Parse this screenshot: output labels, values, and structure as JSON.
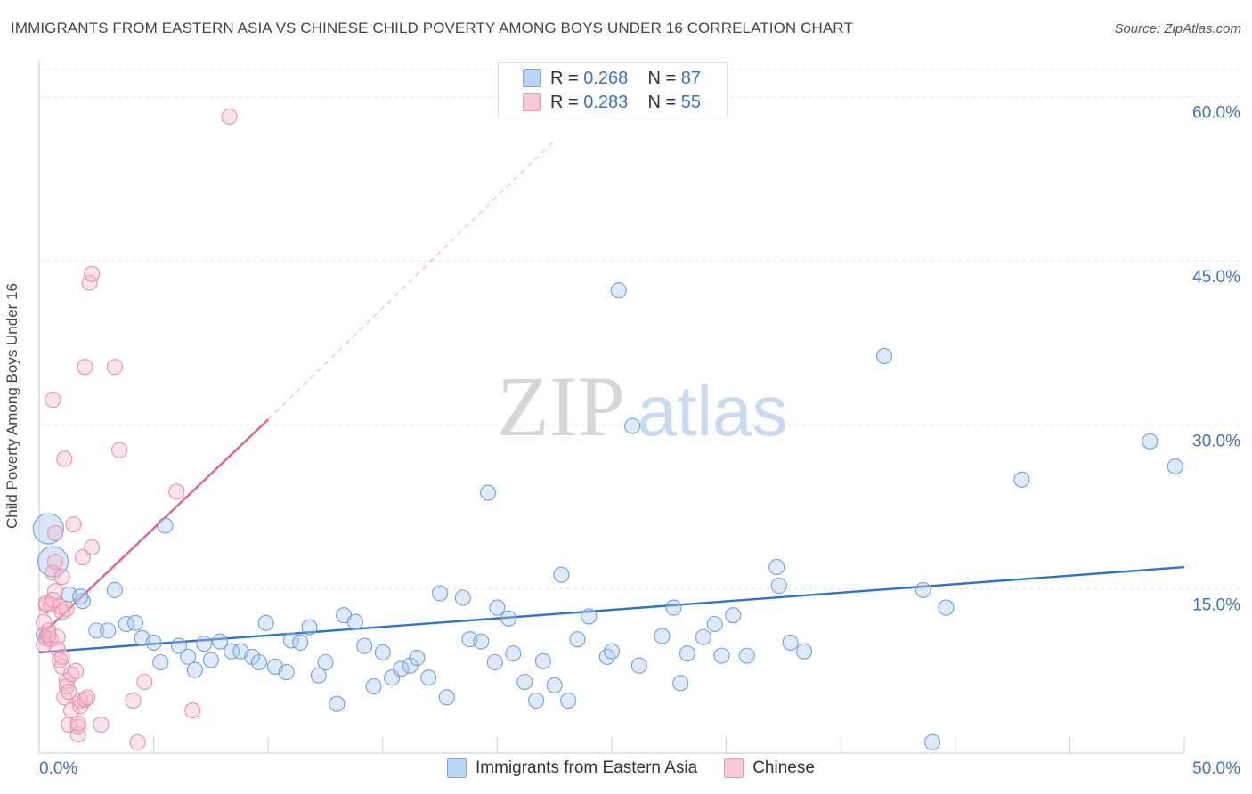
{
  "title": "IMMIGRANTS FROM EASTERN ASIA VS CHINESE CHILD POVERTY AMONG BOYS UNDER 16 CORRELATION CHART",
  "source": "Source: ZipAtlas.com",
  "watermark": {
    "zip": "ZIP",
    "atlas": "atlas"
  },
  "legend": {
    "rows": [
      {
        "r_label": "R = ",
        "r_value": "0.268",
        "n_label": "N = ",
        "n_value": "87"
      },
      {
        "r_label": "R = ",
        "r_value": "0.283",
        "n_label": "N = ",
        "n_value": "55"
      }
    ]
  },
  "chart_data": {
    "type": "scatter",
    "title": "IMMIGRANTS FROM EASTERN ASIA VS CHINESE CHILD POVERTY AMONG BOYS UNDER 16 CORRELATION CHART",
    "xlabel": "",
    "ylabel": "Child Poverty Among Boys Under 16",
    "xlim": [
      0,
      50
    ],
    "ylim": [
      0,
      62.5
    ],
    "x_tick_labels": [
      "0.0%",
      "50.0%"
    ],
    "y_ticks": [
      15,
      30,
      45,
      60
    ],
    "y_tick_labels": [
      "15.0%",
      "30.0%",
      "45.0%",
      "60.0%"
    ],
    "grid": true,
    "legend_position": "top-center",
    "colors": {
      "blue": "#a8c8f0",
      "blue_edge": "#6fa0dd",
      "blue_line": "#2f72cc",
      "pink": "#f6b8cb",
      "pink_edge": "#e890ad",
      "pink_line": "#e8608e",
      "axis_text": "#3a73c8"
    },
    "series": [
      {
        "name": "Immigrants from Eastern Asia",
        "color": "blue",
        "r": 0.268,
        "n": 87,
        "trend": {
          "x": [
            0,
            50
          ],
          "y": [
            9.2,
            17.0
          ]
        },
        "points": [
          {
            "x": 0.4,
            "y": 20.5,
            "big": true
          },
          {
            "x": 0.6,
            "y": 17.5,
            "big": true
          },
          {
            "x": 1.3,
            "y": 14.5
          },
          {
            "x": 1.9,
            "y": 13.9
          },
          {
            "x": 1.8,
            "y": 14.3
          },
          {
            "x": 2.5,
            "y": 11.2
          },
          {
            "x": 3.0,
            "y": 11.2
          },
          {
            "x": 3.3,
            "y": 14.9
          },
          {
            "x": 3.8,
            "y": 11.8
          },
          {
            "x": 4.2,
            "y": 11.9
          },
          {
            "x": 4.5,
            "y": 10.5
          },
          {
            "x": 5.0,
            "y": 10.1
          },
          {
            "x": 5.3,
            "y": 8.3
          },
          {
            "x": 5.5,
            "y": 20.8
          },
          {
            "x": 6.1,
            "y": 9.8
          },
          {
            "x": 6.5,
            "y": 8.8
          },
          {
            "x": 6.8,
            "y": 7.6
          },
          {
            "x": 7.2,
            "y": 10.0
          },
          {
            "x": 7.5,
            "y": 8.5
          },
          {
            "x": 7.9,
            "y": 10.2
          },
          {
            "x": 8.4,
            "y": 9.3
          },
          {
            "x": 8.8,
            "y": 9.3
          },
          {
            "x": 9.3,
            "y": 8.8
          },
          {
            "x": 9.6,
            "y": 8.3
          },
          {
            "x": 9.9,
            "y": 11.9
          },
          {
            "x": 10.3,
            "y": 7.9
          },
          {
            "x": 10.8,
            "y": 7.4
          },
          {
            "x": 11.0,
            "y": 10.3
          },
          {
            "x": 11.4,
            "y": 10.1
          },
          {
            "x": 11.8,
            "y": 11.5
          },
          {
            "x": 12.2,
            "y": 7.1
          },
          {
            "x": 12.5,
            "y": 8.3
          },
          {
            "x": 13.0,
            "y": 4.5
          },
          {
            "x": 13.3,
            "y": 12.6
          },
          {
            "x": 13.8,
            "y": 12.0
          },
          {
            "x": 14.2,
            "y": 9.8
          },
          {
            "x": 14.6,
            "y": 6.1
          },
          {
            "x": 15.0,
            "y": 9.2
          },
          {
            "x": 15.4,
            "y": 6.9
          },
          {
            "x": 15.8,
            "y": 7.7
          },
          {
            "x": 16.2,
            "y": 8.0
          },
          {
            "x": 16.5,
            "y": 8.7
          },
          {
            "x": 17.0,
            "y": 6.9
          },
          {
            "x": 17.5,
            "y": 14.6
          },
          {
            "x": 17.8,
            "y": 5.1
          },
          {
            "x": 18.5,
            "y": 14.2
          },
          {
            "x": 18.8,
            "y": 10.4
          },
          {
            "x": 19.3,
            "y": 10.2
          },
          {
            "x": 19.6,
            "y": 23.8
          },
          {
            "x": 19.9,
            "y": 8.3
          },
          {
            "x": 20.0,
            "y": 13.3
          },
          {
            "x": 20.5,
            "y": 12.3
          },
          {
            "x": 20.7,
            "y": 9.1
          },
          {
            "x": 21.2,
            "y": 6.5
          },
          {
            "x": 21.7,
            "y": 4.8
          },
          {
            "x": 22.0,
            "y": 8.4
          },
          {
            "x": 22.5,
            "y": 6.2
          },
          {
            "x": 22.8,
            "y": 16.3
          },
          {
            "x": 23.1,
            "y": 4.8
          },
          {
            "x": 23.5,
            "y": 10.4
          },
          {
            "x": 24.0,
            "y": 12.5
          },
          {
            "x": 24.8,
            "y": 8.8
          },
          {
            "x": 25.0,
            "y": 9.3
          },
          {
            "x": 25.3,
            "y": 42.3
          },
          {
            "x": 25.9,
            "y": 29.9
          },
          {
            "x": 26.2,
            "y": 8.0
          },
          {
            "x": 27.2,
            "y": 10.7
          },
          {
            "x": 27.7,
            "y": 13.3
          },
          {
            "x": 28.0,
            "y": 6.4
          },
          {
            "x": 28.3,
            "y": 9.1
          },
          {
            "x": 29.0,
            "y": 10.6
          },
          {
            "x": 29.5,
            "y": 11.8
          },
          {
            "x": 29.8,
            "y": 8.9
          },
          {
            "x": 30.3,
            "y": 12.6
          },
          {
            "x": 30.9,
            "y": 8.9
          },
          {
            "x": 32.2,
            "y": 17.0
          },
          {
            "x": 32.3,
            "y": 15.3
          },
          {
            "x": 32.8,
            "y": 10.1
          },
          {
            "x": 33.4,
            "y": 9.3
          },
          {
            "x": 36.9,
            "y": 36.3
          },
          {
            "x": 38.6,
            "y": 14.9
          },
          {
            "x": 39.0,
            "y": 1.0
          },
          {
            "x": 39.6,
            "y": 13.3
          },
          {
            "x": 42.9,
            "y": 25.0
          },
          {
            "x": 48.5,
            "y": 28.5
          },
          {
            "x": 49.6,
            "y": 26.2
          },
          {
            "x": 0.2,
            "y": 10.8
          }
        ]
      },
      {
        "name": "Chinese",
        "color": "pink",
        "r": 0.283,
        "n": 55,
        "trend": {
          "x": [
            0,
            10
          ],
          "y": [
            10.6,
            30.5
          ]
        },
        "trend_extension": {
          "x": [
            10,
            22.5
          ],
          "y": [
            30.5,
            56
          ]
        },
        "points": [
          {
            "x": 0.2,
            "y": 12.0
          },
          {
            "x": 0.3,
            "y": 10.5
          },
          {
            "x": 0.2,
            "y": 9.9
          },
          {
            "x": 0.3,
            "y": 13.5
          },
          {
            "x": 0.4,
            "y": 11.2
          },
          {
            "x": 0.5,
            "y": 13.6
          },
          {
            "x": 0.5,
            "y": 10.4
          },
          {
            "x": 0.6,
            "y": 16.5
          },
          {
            "x": 0.6,
            "y": 32.3
          },
          {
            "x": 0.7,
            "y": 14.8
          },
          {
            "x": 0.7,
            "y": 20.1
          },
          {
            "x": 0.7,
            "y": 17.5
          },
          {
            "x": 0.8,
            "y": 10.6
          },
          {
            "x": 0.8,
            "y": 9.5
          },
          {
            "x": 0.9,
            "y": 13.4
          },
          {
            "x": 0.9,
            "y": 8.5
          },
          {
            "x": 1.0,
            "y": 16.1
          },
          {
            "x": 1.0,
            "y": 12.9
          },
          {
            "x": 1.0,
            "y": 7.9
          },
          {
            "x": 1.1,
            "y": 26.9
          },
          {
            "x": 1.1,
            "y": 5.1
          },
          {
            "x": 1.2,
            "y": 13.2
          },
          {
            "x": 1.2,
            "y": 6.6
          },
          {
            "x": 1.2,
            "y": 6.1
          },
          {
            "x": 1.3,
            "y": 2.6
          },
          {
            "x": 1.3,
            "y": 5.6
          },
          {
            "x": 1.4,
            "y": 3.9
          },
          {
            "x": 1.4,
            "y": 7.2
          },
          {
            "x": 1.5,
            "y": 20.9
          },
          {
            "x": 1.6,
            "y": 7.5
          },
          {
            "x": 1.7,
            "y": 1.7
          },
          {
            "x": 1.7,
            "y": 2.4
          },
          {
            "x": 1.7,
            "y": 2.7
          },
          {
            "x": 1.8,
            "y": 4.3
          },
          {
            "x": 1.8,
            "y": 4.8
          },
          {
            "x": 1.9,
            "y": 17.9
          },
          {
            "x": 2.0,
            "y": 35.3
          },
          {
            "x": 2.0,
            "y": 4.9
          },
          {
            "x": 2.1,
            "y": 5.1
          },
          {
            "x": 2.2,
            "y": 43.0
          },
          {
            "x": 2.3,
            "y": 43.8
          },
          {
            "x": 2.3,
            "y": 18.8
          },
          {
            "x": 2.7,
            "y": 2.6
          },
          {
            "x": 3.3,
            "y": 35.3
          },
          {
            "x": 3.5,
            "y": 27.7
          },
          {
            "x": 4.1,
            "y": 4.8
          },
          {
            "x": 4.3,
            "y": 1.0
          },
          {
            "x": 4.6,
            "y": 6.5
          },
          {
            "x": 6.0,
            "y": 23.9
          },
          {
            "x": 6.7,
            "y": 3.9
          },
          {
            "x": 8.3,
            "y": 58.2
          },
          {
            "x": 0.3,
            "y": 13.7
          },
          {
            "x": 0.4,
            "y": 10.8
          },
          {
            "x": 1.0,
            "y": 8.8
          },
          {
            "x": 0.6,
            "y": 14.0
          }
        ]
      }
    ]
  },
  "bottom_legend": [
    "Immigrants from Eastern Asia",
    "Chinese"
  ]
}
